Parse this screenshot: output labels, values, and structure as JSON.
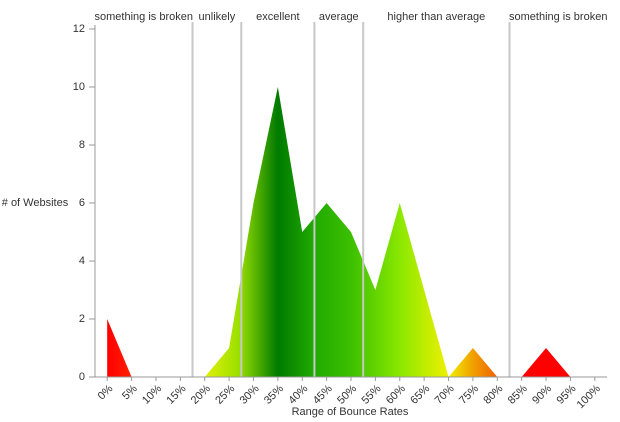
{
  "chart_data": {
    "type": "area",
    "x_label": "Range of Bounce Rates",
    "y_label": "# of Websites",
    "x": [
      0,
      5,
      10,
      15,
      20,
      25,
      30,
      35,
      40,
      45,
      50,
      55,
      60,
      65,
      70,
      75,
      80,
      85,
      90,
      95,
      100
    ],
    "values": [
      2,
      0,
      0,
      0,
      0,
      1,
      6,
      10,
      5,
      6,
      5,
      3,
      6,
      3,
      0,
      1,
      0,
      0,
      1,
      0,
      0
    ],
    "xlim": [
      -2.5,
      102.5
    ],
    "xticks": [
      {
        "value": 0,
        "label": "0%"
      },
      {
        "value": 5,
        "label": "5%"
      },
      {
        "value": 10,
        "label": "10%"
      },
      {
        "value": 15,
        "label": "15%"
      },
      {
        "value": 20,
        "label": "20%"
      },
      {
        "value": 25,
        "label": "25%"
      },
      {
        "value": 30,
        "label": "30%"
      },
      {
        "value": 35,
        "label": "35%"
      },
      {
        "value": 40,
        "label": "40%"
      },
      {
        "value": 45,
        "label": "45%"
      },
      {
        "value": 50,
        "label": "50%"
      },
      {
        "value": 55,
        "label": "55%"
      },
      {
        "value": 60,
        "label": "60%"
      },
      {
        "value": 65,
        "label": "65%"
      },
      {
        "value": 70,
        "label": "70%"
      },
      {
        "value": 75,
        "label": "75%"
      },
      {
        "value": 80,
        "label": "80%"
      },
      {
        "value": 85,
        "label": "85%"
      },
      {
        "value": 90,
        "label": "90%"
      },
      {
        "value": 95,
        "label": "95%"
      },
      {
        "value": 100,
        "label": "100%"
      }
    ],
    "ylim": [
      0,
      12
    ],
    "yticks": [
      0,
      2,
      4,
      6,
      8,
      10,
      12
    ],
    "regions": [
      {
        "label": "something is broken",
        "start": -2.5,
        "end": 17.5
      },
      {
        "label": "unlikely",
        "start": 17.5,
        "end": 27.5
      },
      {
        "label": "excellent",
        "start": 27.5,
        "end": 42.5
      },
      {
        "label": "average",
        "start": 42.5,
        "end": 52.5
      },
      {
        "label": "higher than average",
        "start": 52.5,
        "end": 82.5
      },
      {
        "label": "something is broken",
        "start": 82.5,
        "end": 102.5
      }
    ],
    "fill_gradient": [
      {
        "x": 0,
        "color": "#ff0000"
      },
      {
        "x": 5,
        "color": "#ff2000"
      },
      {
        "x": 18,
        "color": "#f5f500"
      },
      {
        "x": 27,
        "color": "#9be000"
      },
      {
        "x": 35,
        "color": "#007a00"
      },
      {
        "x": 42,
        "color": "#1fa800"
      },
      {
        "x": 50,
        "color": "#3cc000"
      },
      {
        "x": 60,
        "color": "#8ae800"
      },
      {
        "x": 70,
        "color": "#f0f000"
      },
      {
        "x": 75,
        "color": "#f0a000"
      },
      {
        "x": 80,
        "color": "#f06000"
      },
      {
        "x": 85,
        "color": "#ff0000"
      },
      {
        "x": 100,
        "color": "#ff0000"
      }
    ]
  }
}
